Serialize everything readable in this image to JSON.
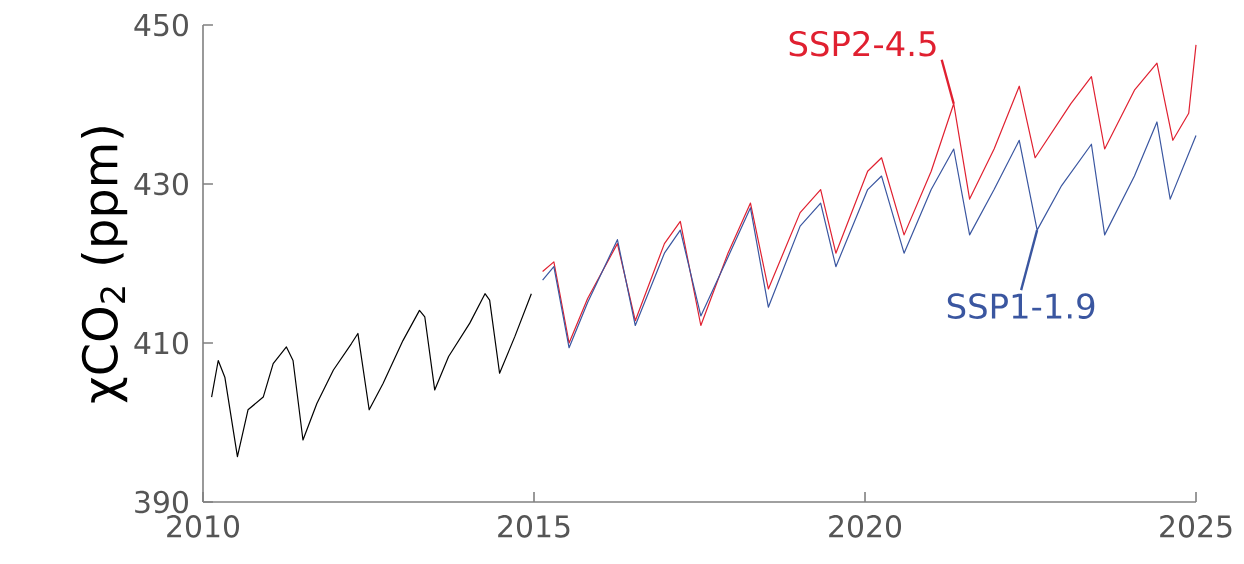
{
  "chart_data": {
    "type": "line",
    "ylabel": "χCO$_{2}$ (ppm)",
    "xlim": [
      2010,
      2025
    ],
    "xticks": [
      2010,
      2015,
      2020,
      2025
    ],
    "ylim": [
      390,
      450
    ],
    "yticks": [
      390,
      410,
      430,
      450
    ],
    "grid": false,
    "series": [
      {
        "color": "#000000",
        "x": [
          2010.13,
          2010.23,
          2010.33,
          2010.52,
          2010.68,
          2010.91,
          2011.06,
          2011.26,
          2011.36,
          2011.51,
          2011.72,
          2011.97,
          2012.24,
          2012.34,
          2012.51,
          2012.72,
          2013.02,
          2013.27,
          2013.35,
          2013.5,
          2013.71,
          2014.03,
          2014.26,
          2014.33,
          2014.48,
          2014.71,
          2014.96
        ],
        "values": [
          403.2,
          407.8,
          405.7,
          395.7,
          401.6,
          403.2,
          407.4,
          409.5,
          407.8,
          397.8,
          402.4,
          406.6,
          409.9,
          411.2,
          401.6,
          404.9,
          410.3,
          414.1,
          413.3,
          404.1,
          408.3,
          412.5,
          416.2,
          415.4,
          406.2,
          410.8,
          416.2
        ]
      },
      {
        "name": "SSP2-4.5",
        "color": "#e02030",
        "x": [
          2015.13,
          2015.3,
          2015.53,
          2015.81,
          2016.26,
          2016.53,
          2016.97,
          2017.21,
          2017.52,
          2017.93,
          2018.27,
          2018.54,
          2019.02,
          2019.33,
          2019.56,
          2020.04,
          2020.25,
          2020.59,
          2021.0,
          2021.34,
          2021.58,
          2021.95,
          2022.33,
          2022.57,
          2023.11,
          2023.42,
          2023.62,
          2024.07,
          2024.41,
          2024.65,
          2024.89,
          2025.0
        ],
        "values": [
          419.0,
          420.2,
          410.0,
          415.6,
          422.5,
          412.8,
          422.5,
          425.3,
          412.2,
          421.3,
          427.6,
          416.8,
          426.4,
          429.3,
          421.3,
          431.6,
          433.3,
          423.6,
          431.6,
          440.1,
          428.1,
          434.4,
          442.3,
          433.3,
          440.1,
          443.5,
          434.4,
          441.8,
          445.2,
          435.5,
          438.9,
          447.5
        ]
      },
      {
        "name": "SSP1-1.9",
        "color": "#3a56a0",
        "x": [
          2015.13,
          2015.3,
          2015.53,
          2015.81,
          2016.26,
          2016.53,
          2016.97,
          2017.21,
          2017.52,
          2017.93,
          2018.27,
          2018.54,
          2019.02,
          2019.33,
          2019.56,
          2020.04,
          2020.25,
          2020.59,
          2021.0,
          2021.34,
          2021.58,
          2021.95,
          2022.33,
          2022.6,
          2022.97,
          2023.42,
          2023.62,
          2024.07,
          2024.41,
          2024.61,
          2025.0
        ],
        "values": [
          417.9,
          419.6,
          409.4,
          415.1,
          423.0,
          412.2,
          421.3,
          424.2,
          413.4,
          420.8,
          427.0,
          414.5,
          424.7,
          427.6,
          419.6,
          429.3,
          431.0,
          421.3,
          429.3,
          434.4,
          423.6,
          429.3,
          435.5,
          424.2,
          429.8,
          435.0,
          423.6,
          431.0,
          437.8,
          428.1,
          436.1
        ]
      }
    ]
  }
}
